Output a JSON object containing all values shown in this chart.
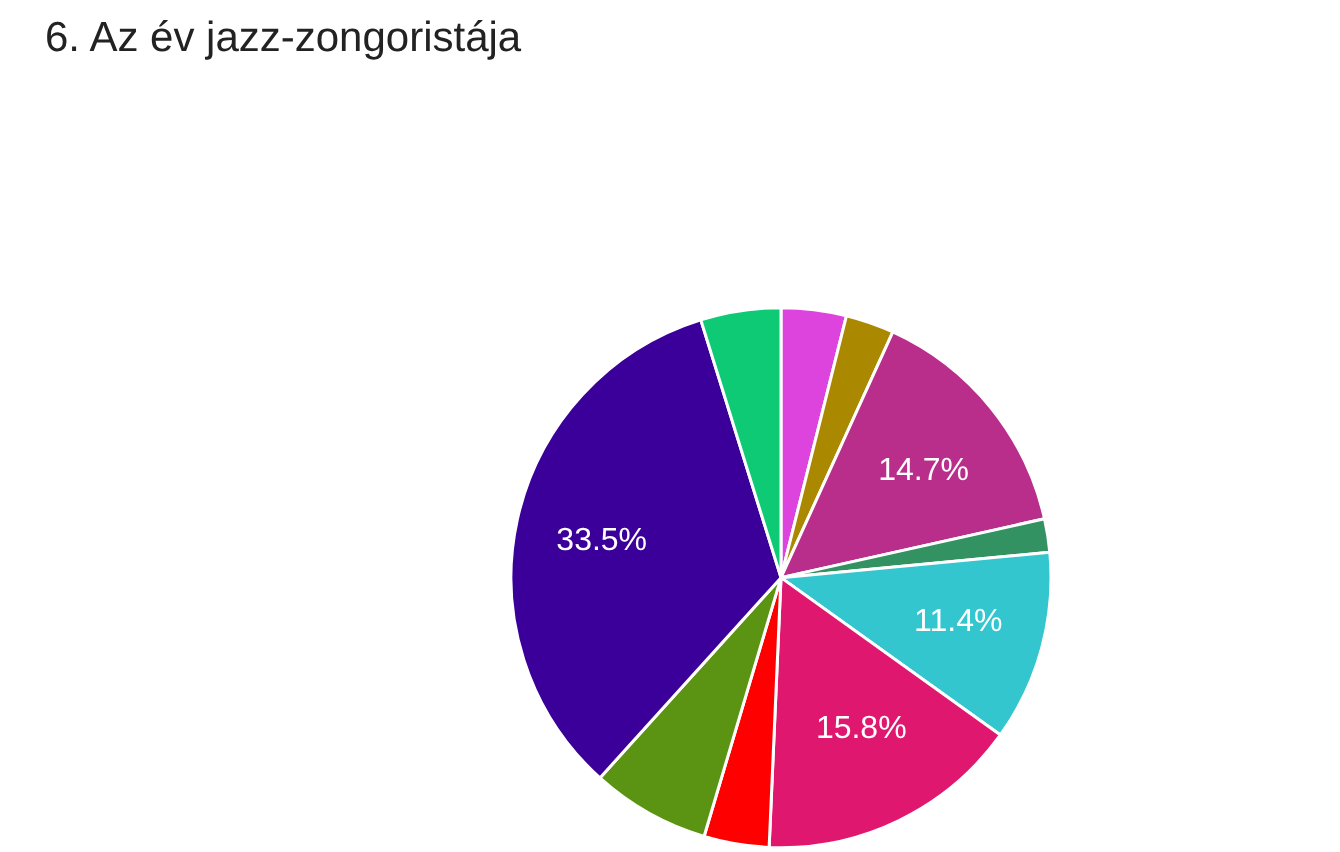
{
  "chart_data": {
    "type": "pie",
    "title": "6. Az év jazz-zongoristája",
    "categories": [
      null,
      null,
      null,
      null,
      null,
      null,
      null,
      null,
      null,
      null
    ],
    "values": [
      3.9,
      2.9,
      14.7,
      2.0,
      11.4,
      15.8,
      3.9,
      7.1,
      33.5,
      4.8
    ],
    "colors": [
      "#dd44dd",
      "#aa8800",
      "#b82e8a",
      "#329262",
      "#33c6cf",
      "#e0176f",
      "#ff0000",
      "#5a9412",
      "#3b0099",
      "#0fca75"
    ],
    "value_labels": [
      null,
      null,
      "14.7%",
      null,
      "11.4%",
      "15.8%",
      null,
      null,
      "33.5%",
      null
    ]
  }
}
